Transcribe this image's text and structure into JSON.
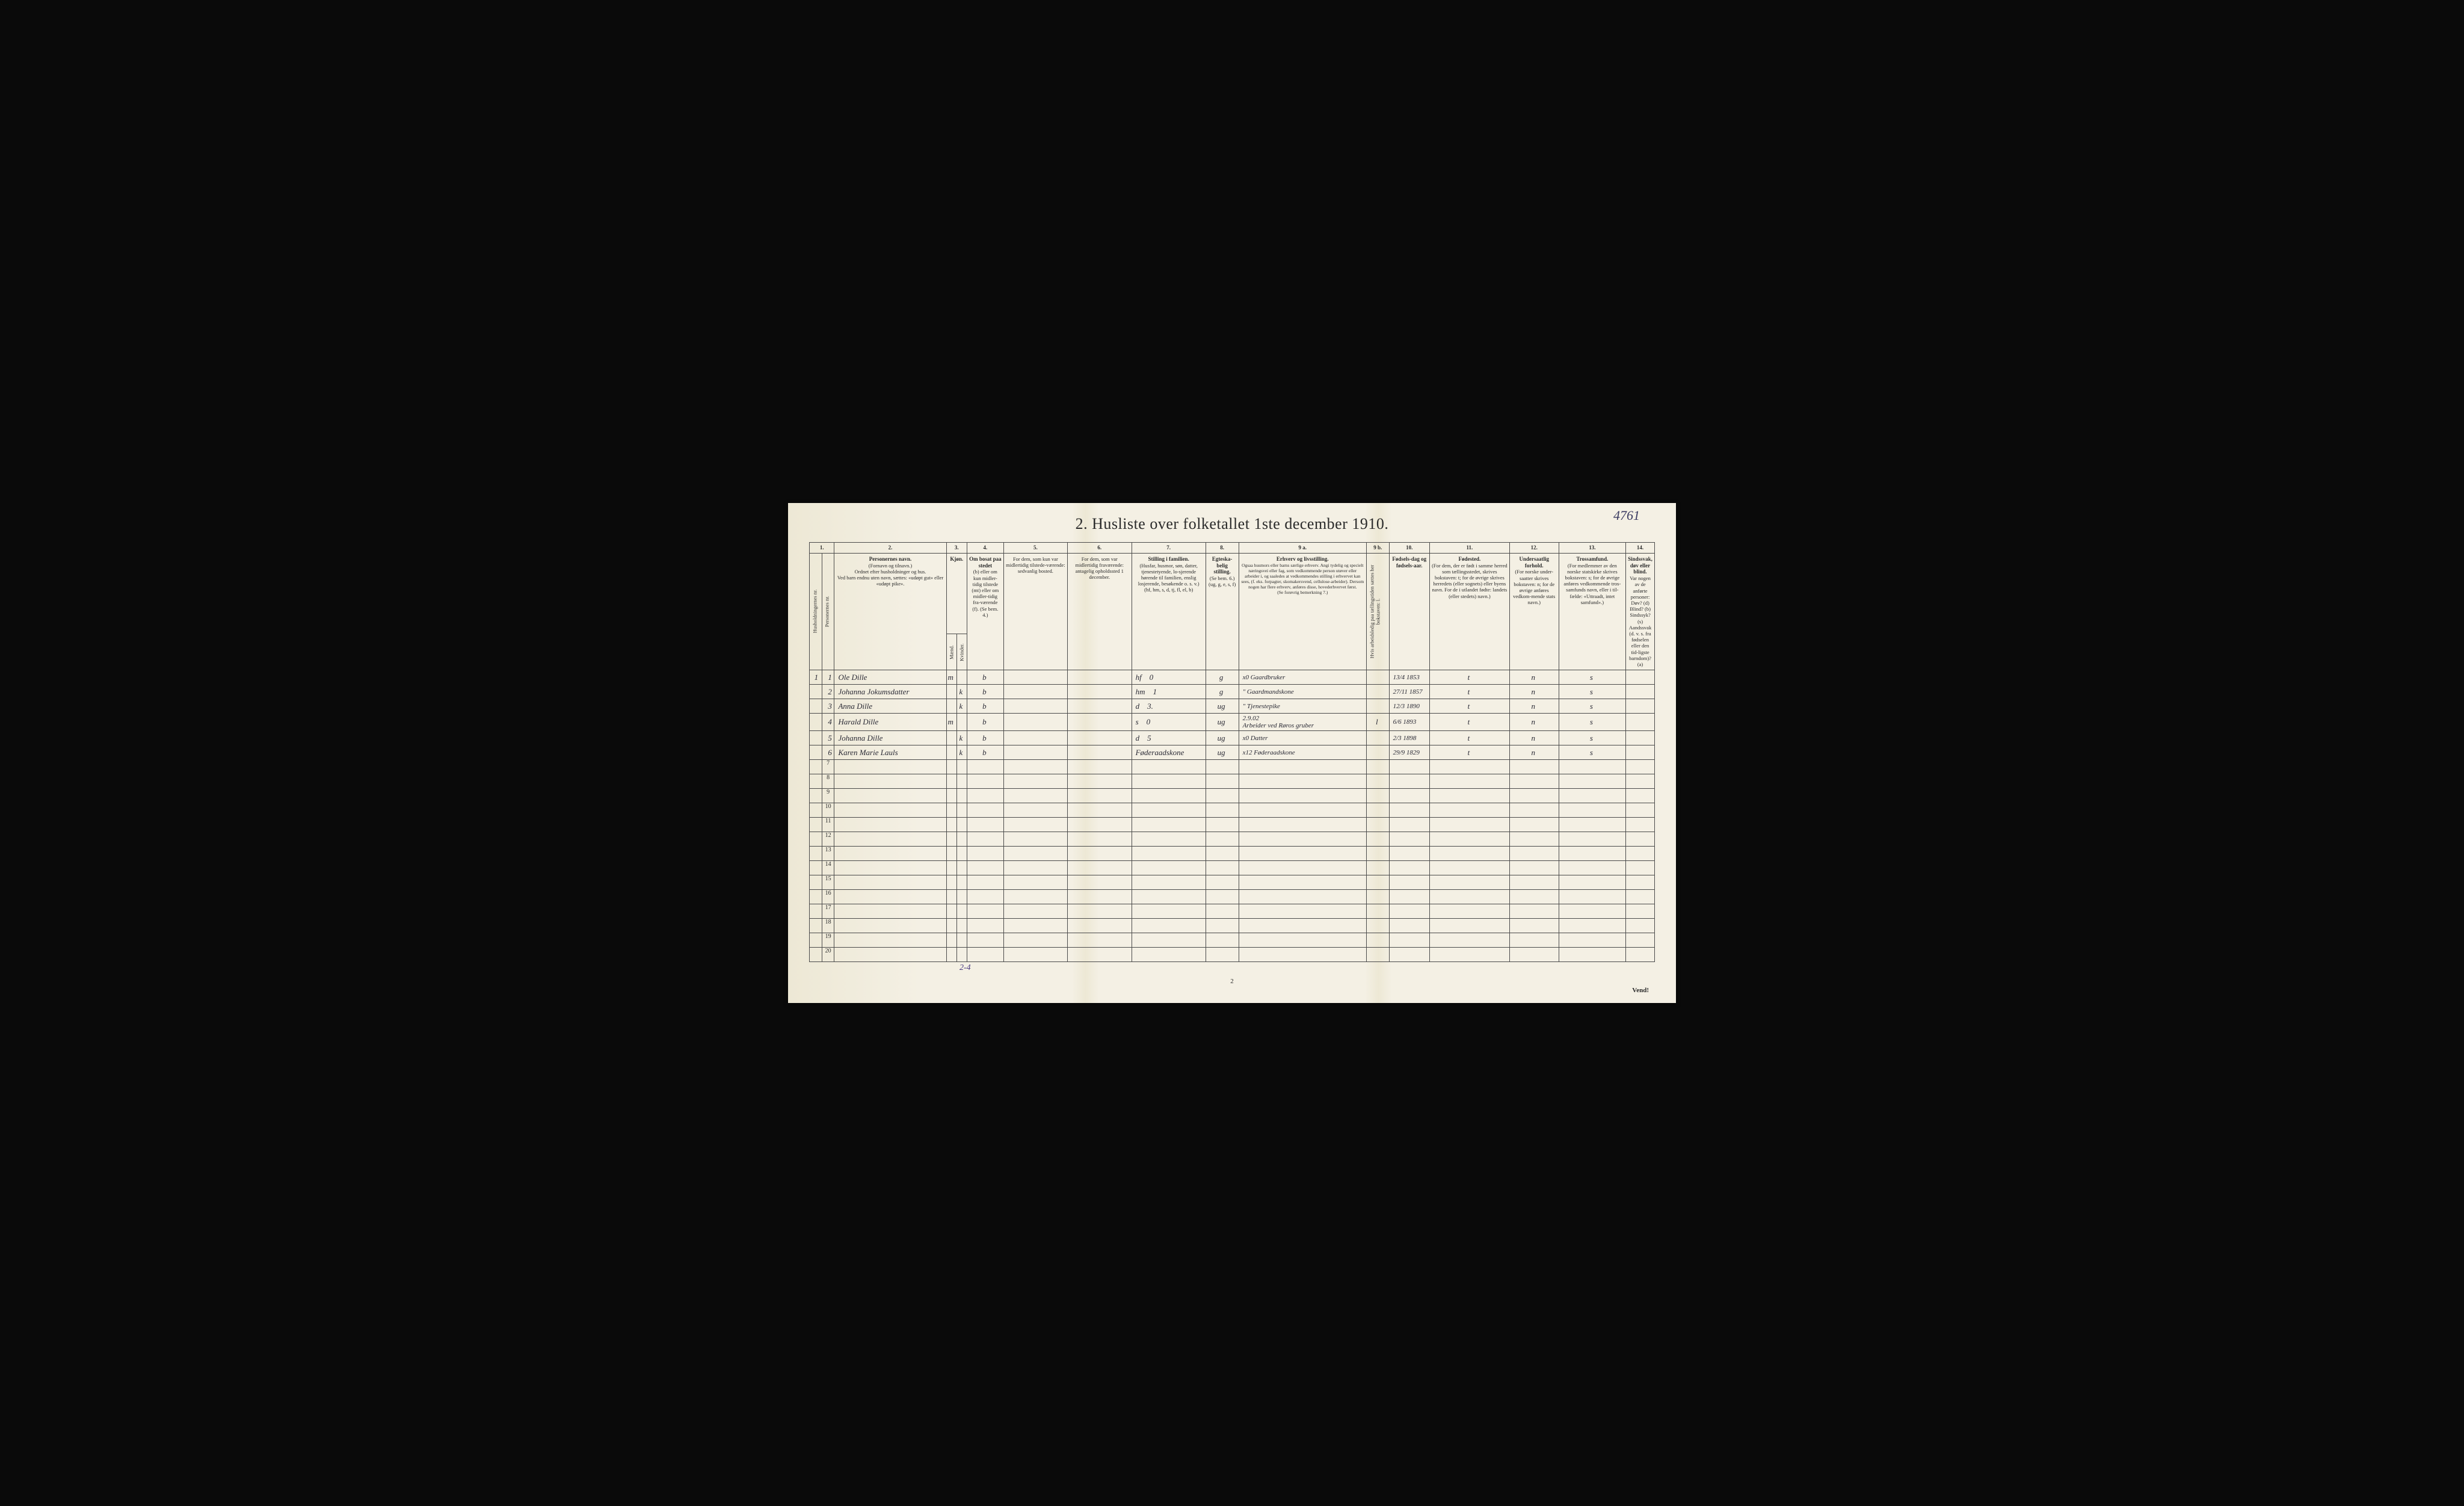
{
  "corner_annotation": "4761",
  "title": "2.  Husliste over folketallet 1ste december 1910.",
  "page_number": "2",
  "vend_text": "Vend!",
  "bottom_annotation": "2-4",
  "column_numbers": [
    "1.",
    "2.",
    "3.",
    "4.",
    "5.",
    "6.",
    "7.",
    "8.",
    "9 a.",
    "9 b.",
    "10.",
    "11.",
    "12.",
    "13.",
    "14."
  ],
  "headers": {
    "col1a": "Husholdningernes nr.",
    "col1b": "Personernes nr.",
    "col2_main": "Personernes navn.",
    "col2_sub": "(Fornavn og tilnavn.)\nOrdnet efter husholdninger og hus.\nVed barn endnu uten navn, sættes: «udøpt gut» eller «udøpt pike».",
    "col3_main": "Kjøn.",
    "col3a": "Mænd.",
    "col3b": "Kvinder.",
    "col3_sub": "m. k.",
    "col4_main": "Om bosat paa stedet",
    "col4_sub": "(b) eller om kun midler-tidig tilstede (mt) eller om midler-tidig fra-værende (f). (Se bem. 4.)",
    "col5_main": "For dem, som kun var midlertidig tilstede-værende:",
    "col5_sub": "sedvanlig bosted.",
    "col6_main": "For dem, som var midlertidig fraværende:",
    "col6_sub": "antagelig opholdssted 1 december.",
    "col7_main": "Stilling i familien.",
    "col7_sub": "(Husfar, husmor, søn, datter, tjenestetyende, lo-sjerende hørende til familien, enslig losjerende, besøkende o. s. v.)\n(hf, hm, s, d, tj, fl, el, b)",
    "col8_main": "Egteska-belig stilling.",
    "col8_sub": "(Se bem. 6.)\n(ug, g, e, s, f)",
    "col9a_main": "Erhverv og livsstilling.",
    "col9a_sub": "Ogsaa husmors eller barns særlige erhverv. Angi tydelig og specielt næringsvei eller fag, som vedkommende person utøver eller arbeider i, og saaledes at vedkommendes stilling i erhvervet kan sees, (f. eks. forpagter, skomakersvend, cellulose-arbeider). Dersom nogen har flere erhverv, anføres disse, hovederhvervet først.\n(Se forøvrig bemerkning 7.)",
    "col9b": "Hvis arbeidsledig paa tællingstiden sættes her bokstaven: l.",
    "col10_main": "Fødsels-dag og fødsels-aar.",
    "col11_main": "Fødested.",
    "col11_sub": "(For dem, der er født i samme herred som tællingsstedet, skrives bokstaven: t; for de øvrige skrives herredets (eller sognets) eller byens navn. For de i utlandet fødte: landets (eller stedets) navn.)",
    "col12_main": "Undersaatlig forhold.",
    "col12_sub": "(For norske under-saatter skrives bokstaven: n; for de øvrige anføres vedkom-mende stats navn.)",
    "col13_main": "Trossamfund.",
    "col13_sub": "(For medlemmer av den norske statskirke skrives bokstaven: s; for de øvrige anføres vedkommende tros-samfunds navn, eller i til-fælde: «Uttraadt, intet samfund».)",
    "col14_main": "Sindssvak, døv eller blind.",
    "col14_sub": "Var nogen av de anførte personer:\nDøv? (d)\nBlind? (b)\nSindssyk? (s)\nAandssvak (d. v. s. fra fødselen eller den tid-ligste barndom)? (a)"
  },
  "rows": [
    {
      "hnum": "1",
      "pnum": "1",
      "name": "Ole Dille",
      "sex": "m",
      "bosat": "b",
      "col7": "hf    0",
      "col8": "g",
      "col9a": "x0  Gaardbruker",
      "col9b": "",
      "col10": "13/4 1853",
      "col11": "t",
      "col12": "n",
      "col13": "s",
      "col14": ""
    },
    {
      "hnum": "",
      "pnum": "2",
      "name": "Johanna Jokumsdatter",
      "sex": "k",
      "bosat": "b",
      "col7": "hm    1",
      "col8": "g",
      "col9a": "\"  Gaardmandskone",
      "col9b": "",
      "col10": "27/11 1857",
      "col11": "t",
      "col12": "n",
      "col13": "s",
      "col14": ""
    },
    {
      "hnum": "",
      "pnum": "3",
      "name": "Anna Dille",
      "sex": "k",
      "bosat": "b",
      "col7": "d    3.",
      "col8": "ug",
      "col9a": "\"  Tjenestepike",
      "col9b": "",
      "col10": "12/3 1890",
      "col11": "t",
      "col12": "n",
      "col13": "s",
      "col14": ""
    },
    {
      "hnum": "",
      "pnum": "4",
      "name": "Harald Dille",
      "sex": "m",
      "bosat": "b",
      "col7": "s    0",
      "col8": "ug",
      "col9a": "2.9.02\nArbeider ved Røros gruber",
      "col9b": "l",
      "col10": "6/6 1893",
      "col11": "t",
      "col12": "n",
      "col13": "s",
      "col14": ""
    },
    {
      "hnum": "",
      "pnum": "5",
      "name": "Johanna Dille",
      "sex": "k",
      "bosat": "b",
      "col7": "d    5",
      "col8": "ug",
      "col9a": "x0  Datter",
      "col9b": "",
      "col10": "2/3 1898",
      "col11": "t",
      "col12": "n",
      "col13": "s",
      "col14": ""
    },
    {
      "hnum": "",
      "pnum": "6",
      "name": "Karen Marie Lauls",
      "sex": "k",
      "bosat": "b",
      "col7": "Føderaadskone",
      "col8": "ug",
      "col9a": "x12 Føderaadskone",
      "col9b": "",
      "col10": "29/9 1829",
      "col11": "t",
      "col12": "n",
      "col13": "s",
      "col14": ""
    }
  ],
  "empty_rows": [
    7,
    8,
    9,
    10,
    11,
    12,
    13,
    14,
    15,
    16,
    17,
    18,
    19,
    20
  ],
  "colors": {
    "paper_bg": "#f4f0e4",
    "fold_shadow": "#ede8d5",
    "ink": "#2a2a2a",
    "handwriting": "#2a2a35",
    "border": "#4a4a4a",
    "outer_bg": "#0a0a0a"
  },
  "column_widths_pct": [
    1.5,
    1.5,
    14,
    1.2,
    1.2,
    4.5,
    8,
    8,
    9,
    4,
    16,
    1.8,
    5,
    10,
    6,
    10,
    8
  ],
  "fonts": {
    "title_pt": 26,
    "header_pt": 8.5,
    "handwriting_pt": 13,
    "rownum_pt": 10
  }
}
